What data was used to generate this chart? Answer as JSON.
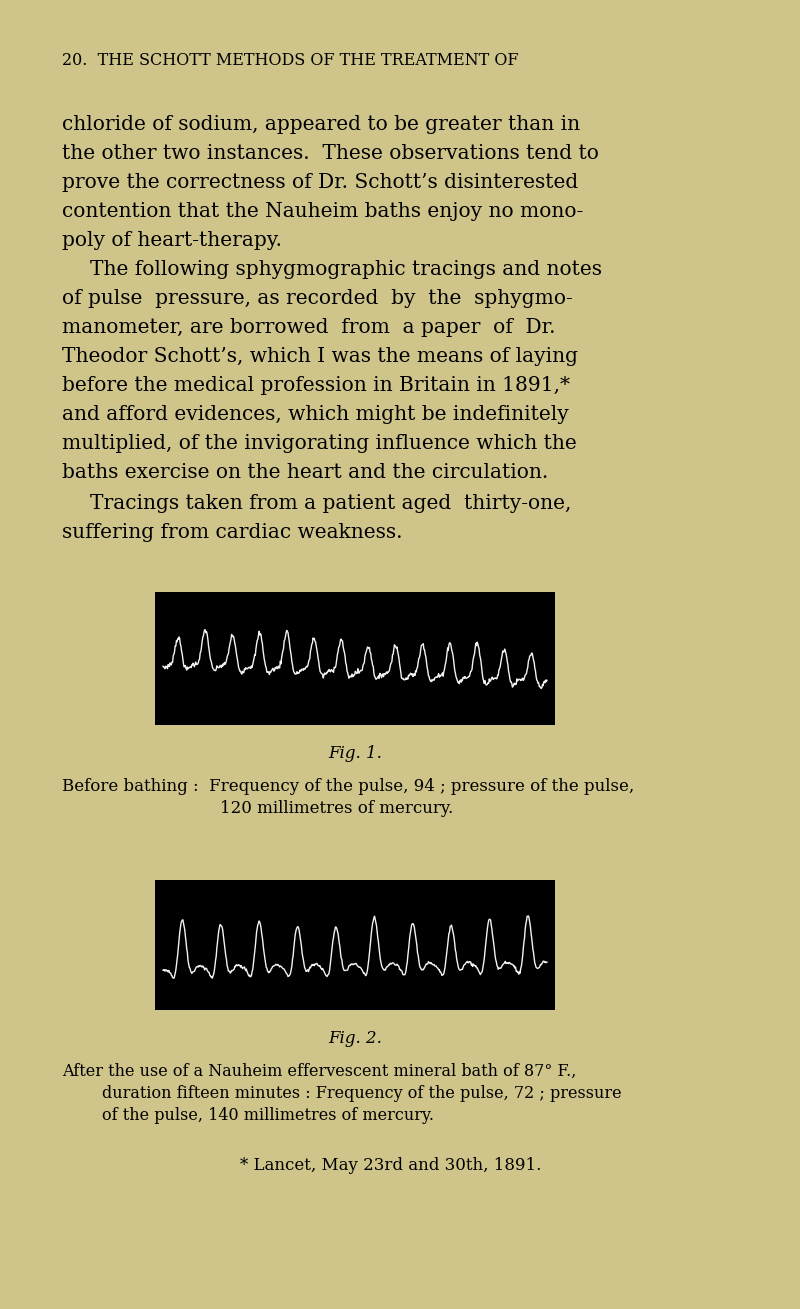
{
  "background_color": "#cfc48a",
  "page_width": 8.0,
  "page_height": 13.09,
  "dpi": 100,
  "header_text": "20.  THE SCHOTT METHODS OF THE TREATMENT OF",
  "body_text_1": [
    "chloride of sodium, appeared to be greater than in",
    "the other two instances.  These observations tend to",
    "prove the correctness of Dr. Schott’s disinterested",
    "contention that the Nauheim baths enjoy no mono-",
    "poly of heart-therapy."
  ],
  "body_text_2": [
    "The following sphygmographic tracings and notes",
    "of pulse  pressure, as recorded  by  the  sphygmo-",
    "manometer, are borrowed  from  a paper  of  Dr.",
    "Theodor Schott’s, which I was the means of laying",
    "before the medical profession in Britain in 1891,*",
    "and afford evidences, which might be indefinitely",
    "multiplied, of the invigorating influence which the",
    "baths exercise on the heart and the circulation."
  ],
  "body_text_3": [
    "Tracings taken from a patient aged  thirty-one,",
    "suffering from cardiac weakness."
  ],
  "fig1_caption": "Fig. 1.",
  "fig1_label_line1": "Before bathing :  Frequency of the pulse, 94 ; pressure of the pulse,",
  "fig1_label_line2": "120 millimetres of mercury.",
  "fig2_caption": "Fig. 2.",
  "fig2_label_line1": "After the use of a Nauheim effervescent mineral bath of 87° F.,",
  "fig2_label_line2": "duration fifteen minutes : Frequency of the pulse, 72 ; pressure",
  "fig2_label_line3": "of the pulse, 140 millimetres of mercury.",
  "footnote_text": "* Lancet, May 23rd and 30th, 1891."
}
